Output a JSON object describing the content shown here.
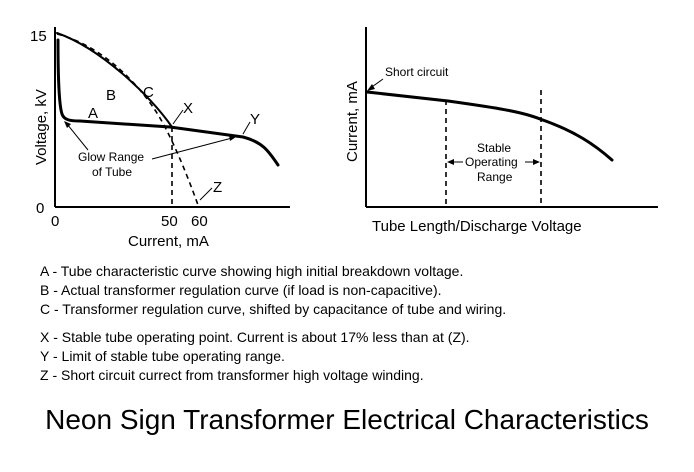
{
  "title": "Neon Sign Transformer Electrical Characteristics",
  "chart_data": [
    {
      "type": "line",
      "xlabel": "Current, mA",
      "ylabel": "Voltage, kV",
      "xlim": [
        0,
        80
      ],
      "ylim": [
        0,
        15
      ],
      "x_ticks": [
        "0",
        "50",
        "60"
      ],
      "y_ticks": [
        "15",
        "0"
      ],
      "series": [
        {
          "name": "A",
          "style": "solid-thick",
          "x": [
            0,
            1,
            2,
            4,
            10,
            30,
            50,
            65,
            70,
            72,
            75,
            78
          ],
          "y": [
            14.5,
            11,
            8,
            7.5,
            7.4,
            7.1,
            6.8,
            6.2,
            5.5,
            4.7,
            3.6,
            2.8
          ]
        },
        {
          "name": "B",
          "style": "dashed",
          "x": [
            0,
            20,
            40,
            50,
            55,
            60
          ],
          "y": [
            15,
            13.2,
            9,
            6,
            3.5,
            0
          ]
        },
        {
          "name": "C",
          "style": "solid",
          "x": [
            0,
            20,
            40,
            50
          ],
          "y": [
            15.2,
            13,
            9.3,
            6.8
          ]
        }
      ],
      "annotations": [
        {
          "label": "X",
          "x": 50,
          "y": 6.8
        },
        {
          "label": "Y",
          "x": 65,
          "y": 6.2
        },
        {
          "label": "Z",
          "x": 60,
          "y": 0
        },
        {
          "label": "Glow Range of Tube",
          "lines": [
            "Glow Range",
            "of Tube"
          ],
          "points_to": [
            "A",
            "Y"
          ]
        }
      ],
      "reference_lines": [
        {
          "x": 50,
          "style": "dashed"
        }
      ]
    },
    {
      "type": "line",
      "xlabel": "Tube Length/Discharge Voltage",
      "ylabel": "Current, mA",
      "series": [
        {
          "x": [
            0,
            0.2,
            0.4,
            0.6,
            0.75,
            0.9,
            1
          ],
          "y": [
            0.86,
            0.83,
            0.79,
            0.73,
            0.65,
            0.51,
            0.36
          ]
        }
      ],
      "annotations": [
        {
          "label": "Short circuit",
          "x": 0,
          "y": 0.86
        },
        {
          "label": "Stable Operating Range",
          "lines": [
            "Stable",
            "Operating",
            "Range"
          ],
          "x_range": [
            0.3,
            0.7
          ]
        }
      ],
      "reference_lines": [
        {
          "x": 0.3,
          "style": "dashed"
        },
        {
          "x": 0.7,
          "style": "dashed"
        }
      ]
    }
  ],
  "notes": [
    "A - Tube characteristic curve showing high initial breakdown voltage.",
    "B - Actual transformer regulation curve (if load is non-capacitive).",
    "C - Transformer regulation curve, shifted by capacitance of tube and wiring.",
    "X - Stable tube operating point.  Current is about 17% less than at (Z).",
    "Y - Limit of stable tube operating range.",
    "Z - Short circuit currect from transformer high voltage winding."
  ]
}
